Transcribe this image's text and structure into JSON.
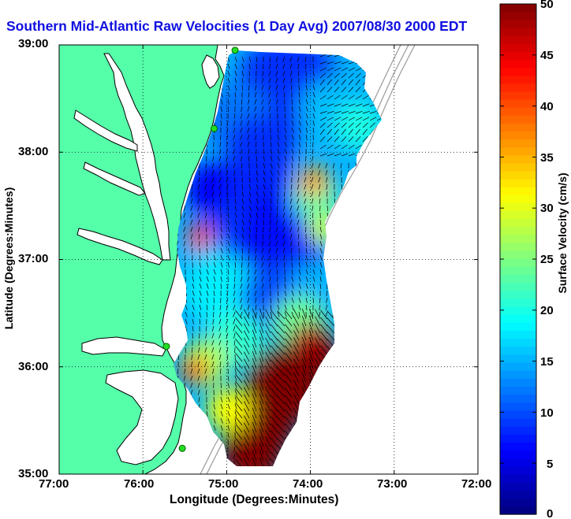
{
  "title": "Southern Mid-Atlantic Raw Velocities (1 Day Avg) 2007/08/30 2000 EDT",
  "x_axis": {
    "label": "Longitude (Degrees:Minutes)",
    "ticks": [
      "77:00",
      "76:00",
      "75:00",
      "74:00",
      "73:00",
      "72:00"
    ]
  },
  "y_axis": {
    "label": "Latitude (Degrees:Minutes)",
    "ticks": [
      "39:00",
      "38:00",
      "37:00",
      "36:00",
      "35:00"
    ]
  },
  "colorbar": {
    "label": "Surface Velocity (cm/s)",
    "ticks": [
      "50",
      "45",
      "40",
      "35",
      "30",
      "25",
      "20",
      "15",
      "10",
      "5",
      "0"
    ],
    "min": 0,
    "max": 50,
    "colormap": "jet"
  },
  "map": {
    "lon_range": [
      -77,
      -72
    ],
    "lat_range": [
      35,
      39
    ],
    "grid": "dotted",
    "land_color": "#55ffaa",
    "water_color": "#ffffff",
    "stations": [
      {
        "lon": -74.9,
        "lat": 38.95
      },
      {
        "lon": -75.15,
        "lat": 38.22
      },
      {
        "lon": -75.72,
        "lat": 36.19
      },
      {
        "lon": -75.53,
        "lat": 35.24
      }
    ]
  }
}
